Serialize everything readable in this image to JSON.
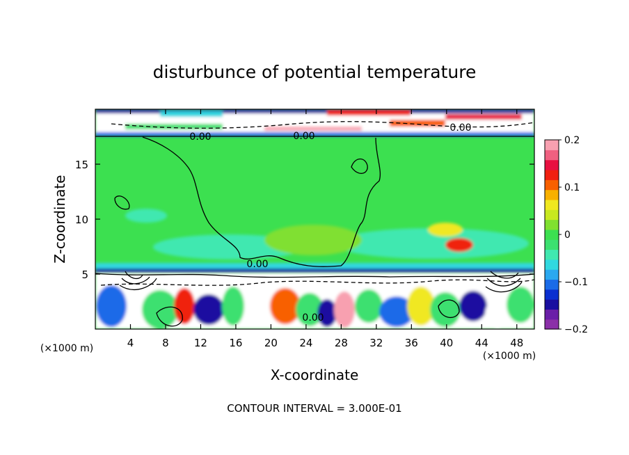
{
  "chart_data": {
    "type": "heatmap",
    "title": "disturbunce of potential temperature",
    "xlabel": "X-coordinate",
    "ylabel": "Z-coordinate",
    "x_unit": "(×1000 m)",
    "y_unit": "(×1000 m)",
    "xlim": [
      0,
      50
    ],
    "ylim": [
      0,
      20
    ],
    "x_ticks": [
      4,
      8,
      12,
      16,
      20,
      24,
      28,
      32,
      36,
      40,
      44,
      48
    ],
    "x_tick_labels": [
      "4",
      "8",
      "12",
      "16",
      "20",
      "24",
      "28",
      "32",
      "36",
      "40",
      "44",
      "48"
    ],
    "y_ticks": [
      5,
      10,
      15
    ],
    "y_tick_labels": [
      "5",
      "10",
      "15"
    ],
    "colorbar": {
      "min": -0.2,
      "max": 0.2,
      "tick_values": [
        0.2,
        0.1,
        0,
        -0.1,
        -0.2
      ],
      "tick_labels": [
        "0.2",
        "0.1",
        "0",
        "−0.1",
        "−0.2"
      ],
      "colors": [
        "#8b2fa8",
        "#6a1fa8",
        "#1a0fa0",
        "#0a2fd0",
        "#1a6be8",
        "#2aa8f0",
        "#30d8e0",
        "#40e8b0",
        "#3ce070",
        "#3ce050",
        "#80e030",
        "#c8e820",
        "#f0e820",
        "#f8b000",
        "#f86000",
        "#f02010",
        "#e81040",
        "#f06080",
        "#f8a0b0"
      ]
    },
    "contour_labels": [
      "0.00",
      "0.00",
      "0.00",
      "0.00",
      "0.00"
    ],
    "contour_interval": "CONTOUR INTERVAL = 3.000E-01"
  }
}
